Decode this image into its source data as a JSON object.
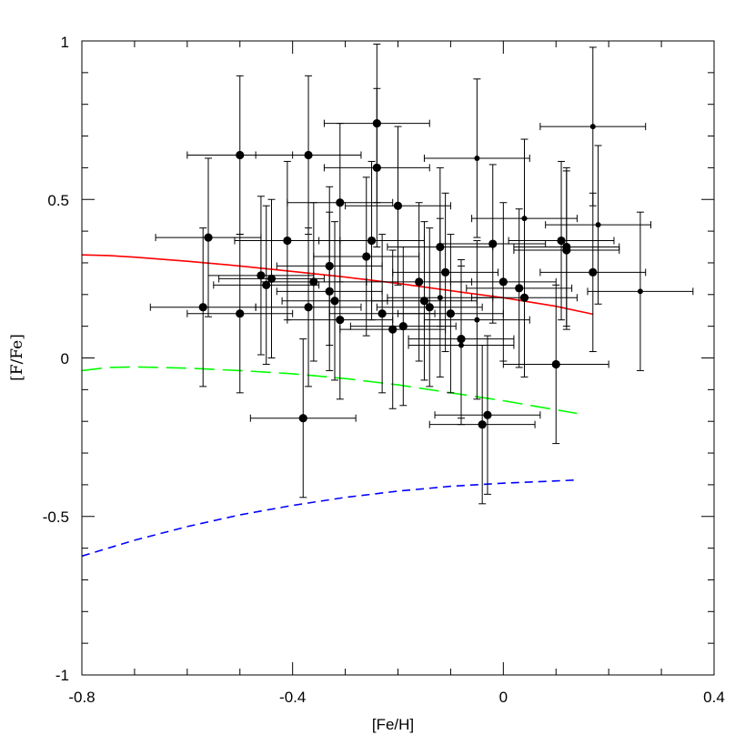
{
  "chart_data": {
    "type": "scatter",
    "title": "",
    "xlabel": "[Fe/H]",
    "ylabel": "[F/Fe]",
    "xlim": [
      -0.8,
      0.4
    ],
    "ylim": [
      -1,
      1
    ],
    "x_ticks": [
      "-0.8",
      "-0.4",
      "0",
      "0.4"
    ],
    "y_ticks": [
      "-1",
      "-0.5",
      "0",
      "0.5",
      "1"
    ],
    "grid": false,
    "series": [
      {
        "kind": "points",
        "color": "#000000",
        "points": [
          {
            "x": -0.57,
            "y": 0.16,
            "xerr": 0.1,
            "yerr": 0.25,
            "size": "large"
          },
          {
            "x": -0.56,
            "y": 0.38,
            "xerr": 0.1,
            "yerr": 0.25,
            "size": "large"
          },
          {
            "x": -0.5,
            "y": 0.64,
            "xerr": 0.1,
            "yerr": 0.25,
            "size": "large"
          },
          {
            "x": -0.5,
            "y": 0.14,
            "xerr": 0.1,
            "yerr": 0.25,
            "size": "large"
          },
          {
            "x": -0.46,
            "y": 0.26,
            "xerr": 0.1,
            "yerr": 0.25,
            "size": "large"
          },
          {
            "x": -0.45,
            "y": 0.23,
            "xerr": 0.1,
            "yerr": 0.25,
            "size": "large"
          },
          {
            "x": -0.44,
            "y": 0.25,
            "xerr": 0.1,
            "yerr": 0.25,
            "size": "large"
          },
          {
            "x": -0.41,
            "y": 0.37,
            "xerr": 0.1,
            "yerr": 0.25,
            "size": "large"
          },
          {
            "x": -0.38,
            "y": -0.19,
            "xerr": 0.1,
            "yerr": 0.25,
            "size": "large"
          },
          {
            "x": -0.37,
            "y": 0.64,
            "xerr": 0.1,
            "yerr": 0.25,
            "size": "large"
          },
          {
            "x": -0.37,
            "y": 0.16,
            "xerr": 0.1,
            "yerr": 0.25,
            "size": "large"
          },
          {
            "x": -0.36,
            "y": 0.24,
            "xerr": 0.1,
            "yerr": 0.25,
            "size": "large"
          },
          {
            "x": -0.33,
            "y": 0.29,
            "xerr": 0.1,
            "yerr": 0.25,
            "size": "large"
          },
          {
            "x": -0.33,
            "y": 0.21,
            "xerr": 0.1,
            "yerr": 0.25,
            "size": "large"
          },
          {
            "x": -0.32,
            "y": 0.18,
            "xerr": 0.1,
            "yerr": 0.25,
            "size": "large"
          },
          {
            "x": -0.31,
            "y": 0.49,
            "xerr": 0.1,
            "yerr": 0.25,
            "size": "large"
          },
          {
            "x": -0.31,
            "y": 0.12,
            "xerr": 0.1,
            "yerr": 0.25,
            "size": "large"
          },
          {
            "x": -0.26,
            "y": 0.32,
            "xerr": 0.1,
            "yerr": 0.25,
            "size": "large"
          },
          {
            "x": -0.25,
            "y": 0.37,
            "xerr": 0.1,
            "yerr": 0.25,
            "size": "large"
          },
          {
            "x": -0.24,
            "y": 0.74,
            "xerr": 0.1,
            "yerr": 0.25,
            "size": "large"
          },
          {
            "x": -0.24,
            "y": 0.6,
            "xerr": 0.1,
            "yerr": 0.25,
            "size": "large"
          },
          {
            "x": -0.23,
            "y": 0.14,
            "xerr": 0.1,
            "yerr": 0.25,
            "size": "large"
          },
          {
            "x": -0.21,
            "y": 0.09,
            "xerr": 0.1,
            "yerr": 0.25,
            "size": "large"
          },
          {
            "x": -0.2,
            "y": 0.48,
            "xerr": 0.1,
            "yerr": 0.25,
            "size": "large"
          },
          {
            "x": -0.19,
            "y": 0.1,
            "xerr": 0.1,
            "yerr": 0.25,
            "size": "large"
          },
          {
            "x": -0.16,
            "y": 0.24,
            "xerr": 0.1,
            "yerr": 0.25,
            "size": "large"
          },
          {
            "x": -0.15,
            "y": 0.18,
            "xerr": 0.1,
            "yerr": 0.25,
            "size": "large"
          },
          {
            "x": -0.14,
            "y": 0.16,
            "xerr": 0.1,
            "yerr": 0.25,
            "size": "large"
          },
          {
            "x": -0.12,
            "y": 0.35,
            "xerr": 0.1,
            "yerr": 0.25,
            "size": "large"
          },
          {
            "x": -0.12,
            "y": 0.19,
            "xerr": 0.1,
            "yerr": 0.25,
            "size": "small"
          },
          {
            "x": -0.11,
            "y": 0.27,
            "xerr": 0.1,
            "yerr": 0.25,
            "size": "large"
          },
          {
            "x": -0.1,
            "y": 0.14,
            "xerr": 0.1,
            "yerr": 0.25,
            "size": "large"
          },
          {
            "x": -0.08,
            "y": 0.06,
            "xerr": 0.1,
            "yerr": 0.25,
            "size": "large"
          },
          {
            "x": -0.08,
            "y": 0.04,
            "xerr": 0.1,
            "yerr": 0.25,
            "size": "small"
          },
          {
            "x": -0.05,
            "y": 0.63,
            "xerr": 0.1,
            "yerr": 0.25,
            "size": "small"
          },
          {
            "x": -0.05,
            "y": 0.12,
            "xerr": 0.1,
            "yerr": 0.25,
            "size": "small"
          },
          {
            "x": -0.04,
            "y": -0.21,
            "xerr": 0.1,
            "yerr": 0.25,
            "size": "large"
          },
          {
            "x": -0.03,
            "y": -0.18,
            "xerr": 0.1,
            "yerr": 0.25,
            "size": "large"
          },
          {
            "x": -0.02,
            "y": 0.36,
            "xerr": 0.1,
            "yerr": 0.25,
            "size": "large"
          },
          {
            "x": 0.0,
            "y": 0.24,
            "xerr": 0.1,
            "yerr": 0.25,
            "size": "large"
          },
          {
            "x": 0.03,
            "y": 0.22,
            "xerr": 0.1,
            "yerr": 0.25,
            "size": "large"
          },
          {
            "x": 0.04,
            "y": 0.44,
            "xerr": 0.1,
            "yerr": 0.25,
            "size": "small"
          },
          {
            "x": 0.04,
            "y": 0.19,
            "xerr": 0.1,
            "yerr": 0.25,
            "size": "large"
          },
          {
            "x": 0.1,
            "y": -0.02,
            "xerr": 0.1,
            "yerr": 0.25,
            "size": "large"
          },
          {
            "x": 0.11,
            "y": 0.37,
            "xerr": 0.1,
            "yerr": 0.25,
            "size": "large"
          },
          {
            "x": 0.12,
            "y": 0.35,
            "xerr": 0.1,
            "yerr": 0.25,
            "size": "large"
          },
          {
            "x": 0.12,
            "y": 0.34,
            "xerr": 0.1,
            "yerr": 0.25,
            "size": "large"
          },
          {
            "x": 0.17,
            "y": 0.73,
            "xerr": 0.1,
            "yerr": 0.25,
            "size": "small"
          },
          {
            "x": 0.17,
            "y": 0.27,
            "xerr": 0.1,
            "yerr": 0.25,
            "size": "large"
          },
          {
            "x": 0.18,
            "y": 0.42,
            "xerr": 0.1,
            "yerr": 0.25,
            "size": "small"
          },
          {
            "x": 0.26,
            "y": 0.21,
            "xerr": 0.1,
            "yerr": 0.25,
            "size": "small"
          }
        ]
      },
      {
        "kind": "line",
        "color": "#ff0000",
        "dash": "solid",
        "x": [
          -0.8,
          -0.75,
          -0.7,
          -0.6,
          -0.5,
          -0.4,
          -0.3,
          -0.2,
          -0.1,
          0.0,
          0.1,
          0.17
        ],
        "y": [
          0.325,
          0.323,
          0.318,
          0.305,
          0.29,
          0.273,
          0.255,
          0.235,
          0.212,
          0.19,
          0.163,
          0.138
        ]
      },
      {
        "kind": "line",
        "color": "#00ff00",
        "dash": "long-dash",
        "x": [
          -0.8,
          -0.75,
          -0.7,
          -0.6,
          -0.5,
          -0.4,
          -0.3,
          -0.2,
          -0.1,
          0.0,
          0.14
        ],
        "y": [
          -0.04,
          -0.03,
          -0.028,
          -0.032,
          -0.04,
          -0.05,
          -0.065,
          -0.085,
          -0.11,
          -0.135,
          -0.175
        ]
      },
      {
        "kind": "line",
        "color": "#0000ff",
        "dash": "short-dash",
        "x": [
          -0.8,
          -0.7,
          -0.6,
          -0.5,
          -0.4,
          -0.3,
          -0.2,
          -0.1,
          0.0,
          0.1,
          0.14
        ],
        "y": [
          -0.625,
          -0.575,
          -0.532,
          -0.495,
          -0.465,
          -0.44,
          -0.42,
          -0.405,
          -0.395,
          -0.388,
          -0.385
        ]
      }
    ]
  }
}
